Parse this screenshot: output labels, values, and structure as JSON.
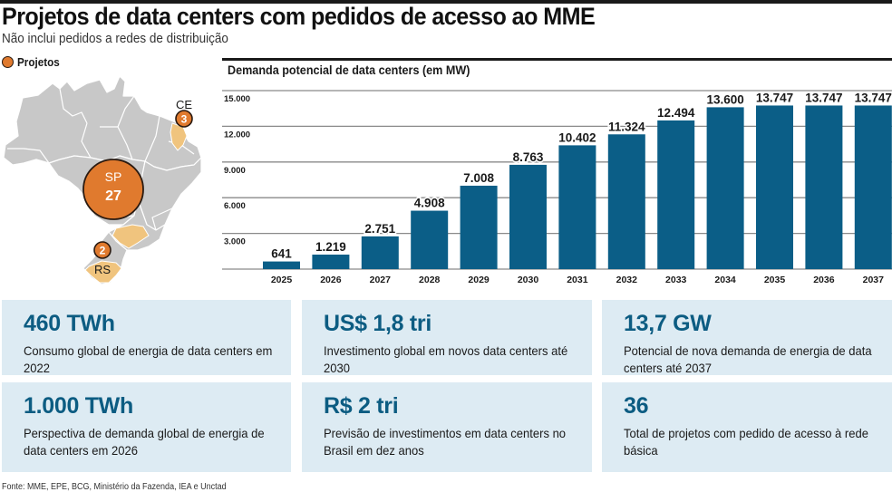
{
  "header": {
    "title": "Projetos de data centers com pedidos de acesso ao MME",
    "subtitle": "Não inclui pedidos a redes de distribuição"
  },
  "map": {
    "legend_label": "Projetos",
    "colors": {
      "land": "#c8c8c8",
      "highlight": "#f0c47e",
      "marker": "#e07a2e",
      "marker_border": "#2a1a10"
    },
    "markers": [
      {
        "state": "SP",
        "count": "27"
      },
      {
        "state": "CE",
        "count": "3"
      },
      {
        "state": "RS",
        "count": "2"
      }
    ]
  },
  "chart_data": {
    "type": "bar",
    "title": "Demanda potencial de data centers (em MW)",
    "xlabel": "",
    "ylabel": "",
    "categories": [
      "2025",
      "2026",
      "2027",
      "2028",
      "2029",
      "2030",
      "2031",
      "2032",
      "2033",
      "2034",
      "2035",
      "2036",
      "2037"
    ],
    "values": [
      641,
      1219,
      2751,
      4908,
      7008,
      8763,
      10402,
      11324,
      12494,
      13600,
      13747,
      13747,
      13747
    ],
    "value_labels": [
      "641",
      "1.219",
      "2.751",
      "4.908",
      "7.008",
      "8.763",
      "10.402",
      "11.324",
      "12.494",
      "13.600",
      "13.747",
      "13.747",
      "13.747"
    ],
    "ylim": [
      0,
      15000
    ],
    "yticks": [
      3000,
      6000,
      9000,
      12000,
      15000
    ],
    "ytick_labels": [
      "3.000",
      "6.000",
      "9.000",
      "12.000",
      "15.000"
    ],
    "grid": true,
    "bar_color": "#0b5e87"
  },
  "cards": [
    {
      "value": "460 TWh",
      "desc": "Consumo global de energia de data centers em 2022"
    },
    {
      "value": "US$ 1,8 tri",
      "desc": "Investimento global em novos data centers até 2030"
    },
    {
      "value": "13,7 GW",
      "desc": "Potencial de nova demanda de energia de data centers até 2037"
    },
    {
      "value": "1.000 TWh",
      "desc": "Perspectiva de demanda global de energia de data centers em 2026"
    },
    {
      "value": "R$ 2 tri",
      "desc": "Previsão de investimentos em data centers no Brasil em dez anos"
    },
    {
      "value": "36",
      "desc": "Total de projetos com pedido de acesso à rede básica"
    }
  ],
  "footer": {
    "source": "Fonte: MME, EPE, BCG, Ministério da Fazenda, IEA e Unctad"
  }
}
